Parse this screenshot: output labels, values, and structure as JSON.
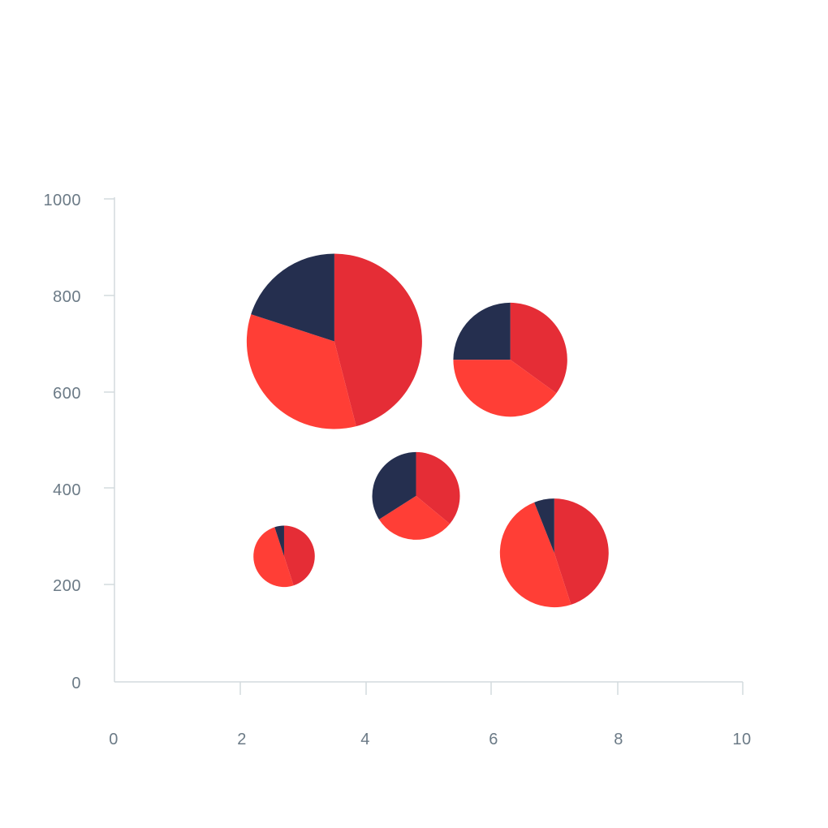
{
  "chart_data": {
    "type": "scatter",
    "title": "",
    "xlabel": "",
    "ylabel": "",
    "xlim": [
      0,
      10
    ],
    "ylim": [
      0,
      1000
    ],
    "x_ticks": [
      "0",
      "2",
      "4",
      "6",
      "8",
      "10"
    ],
    "y_ticks": [
      "0",
      "200",
      "400",
      "600",
      "800",
      "1000"
    ],
    "grid": false,
    "legend": "none",
    "slice_colors": [
      "#e52d36",
      "#ff3e36",
      "#252f4f"
    ],
    "points": [
      {
        "x": 3.5,
        "y": 705,
        "size": 1.0,
        "slices": [
          46,
          34,
          20
        ]
      },
      {
        "x": 6.3,
        "y": 667,
        "size": 0.65,
        "slices": [
          35,
          40,
          25
        ]
      },
      {
        "x": 4.8,
        "y": 385,
        "size": 0.5,
        "slices": [
          36,
          30,
          34
        ]
      },
      {
        "x": 2.7,
        "y": 260,
        "size": 0.35,
        "slices": [
          45,
          50,
          5
        ]
      },
      {
        "x": 7.0,
        "y": 267,
        "size": 0.62,
        "slices": [
          45,
          49,
          6
        ]
      }
    ]
  }
}
